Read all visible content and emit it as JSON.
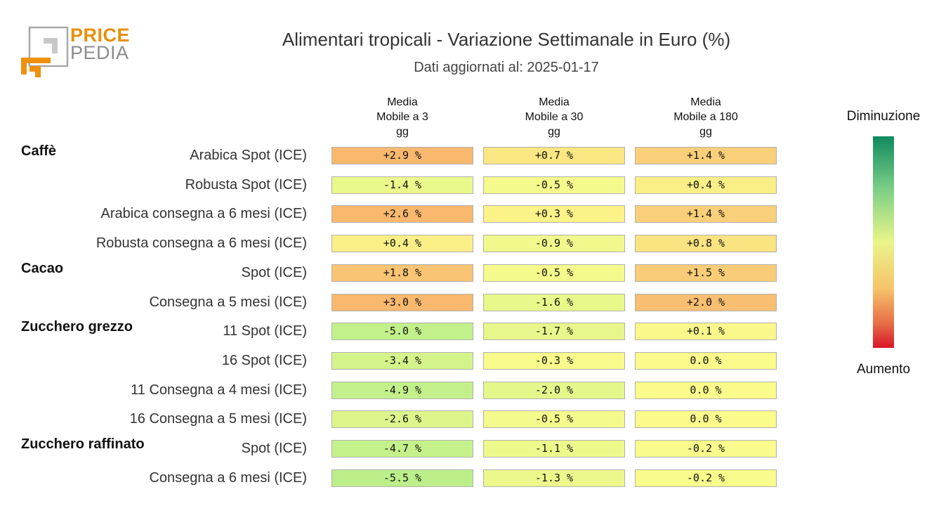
{
  "logo": {
    "word1": "PRICE",
    "word2": "PEDIA"
  },
  "title": "Alimentari tropicali - Variazione Settimanale in Euro (%)",
  "subtitle": "Dati aggiornati al: 2025-01-17",
  "legend": {
    "top": "Diminuzione",
    "bottom": "Aumento"
  },
  "colors": {
    "scale": [
      "#0f8a5f",
      "#7ccf85",
      "#e9f58a",
      "#f6c36a",
      "#e87048",
      "#d8152a"
    ]
  },
  "chart_data": {
    "type": "heatmap",
    "title": "Alimentari tropicali - Variazione Settimanale in Euro (%)",
    "columns": [
      [
        "Media",
        "Mobile a 3",
        "gg"
      ],
      [
        "Media",
        "Mobile a 30",
        "gg"
      ],
      [
        "Media",
        "Mobile a 180",
        "gg"
      ]
    ],
    "groups": [
      {
        "name": "Caffè",
        "rows": [
          {
            "label": "Arabica Spot (ICE)",
            "values": [
              "+2.9 %",
              "+0.7 %",
              "+1.4 %"
            ],
            "num": [
              2.9,
              0.7,
              1.4
            ]
          },
          {
            "label": "Robusta Spot (ICE)",
            "values": [
              "-1.4 %",
              "-0.5 %",
              "+0.4 %"
            ],
            "num": [
              -1.4,
              -0.5,
              0.4
            ]
          },
          {
            "label": "Arabica consegna a 6 mesi (ICE)",
            "values": [
              "+2.6 %",
              "+0.3 %",
              "+1.4 %"
            ],
            "num": [
              2.6,
              0.3,
              1.4
            ]
          },
          {
            "label": "Robusta consegna a 6 mesi (ICE)",
            "values": [
              "+0.4 %",
              "-0.9 %",
              "+0.8 %"
            ],
            "num": [
              0.4,
              -0.9,
              0.8
            ]
          }
        ]
      },
      {
        "name": "Cacao",
        "rows": [
          {
            "label": "Spot (ICE)",
            "values": [
              "+1.8 %",
              "-0.5 %",
              "+1.5 %"
            ],
            "num": [
              1.8,
              -0.5,
              1.5
            ]
          },
          {
            "label": "Consegna a 5 mesi (ICE)",
            "values": [
              "+3.0 %",
              "-1.6 %",
              "+2.0 %"
            ],
            "num": [
              3.0,
              -1.6,
              2.0
            ]
          }
        ]
      },
      {
        "name": "Zucchero grezzo",
        "rows": [
          {
            "label": "11 Spot (ICE)",
            "values": [
              "-5.0 %",
              "-1.7 %",
              "+0.1 %"
            ],
            "num": [
              -5.0,
              -1.7,
              0.1
            ]
          },
          {
            "label": "16 Spot (ICE)",
            "values": [
              "-3.4 %",
              "-0.3 %",
              "0.0 %"
            ],
            "num": [
              -3.4,
              -0.3,
              0.0
            ]
          },
          {
            "label": "11 Consegna a 4 mesi (ICE)",
            "values": [
              "-4.9 %",
              "-2.0 %",
              "0.0 %"
            ],
            "num": [
              -4.9,
              -2.0,
              0.0
            ]
          },
          {
            "label": "16 Consegna a 5 mesi (ICE)",
            "values": [
              "-2.6 %",
              "-0.5 %",
              "0.0 %"
            ],
            "num": [
              -2.6,
              -0.5,
              0.0
            ]
          }
        ]
      },
      {
        "name": "Zucchero raffinato",
        "rows": [
          {
            "label": "Spot (ICE)",
            "values": [
              "-4.7 %",
              "-1.1 %",
              "-0.2 %"
            ],
            "num": [
              -4.7,
              -1.1,
              -0.2
            ]
          },
          {
            "label": "Consegna a 6 mesi (ICE)",
            "values": [
              "-5.5 %",
              "-1.3 %",
              "-0.2 %"
            ],
            "num": [
              -5.5,
              -1.3,
              -0.2
            ]
          }
        ]
      }
    ]
  }
}
